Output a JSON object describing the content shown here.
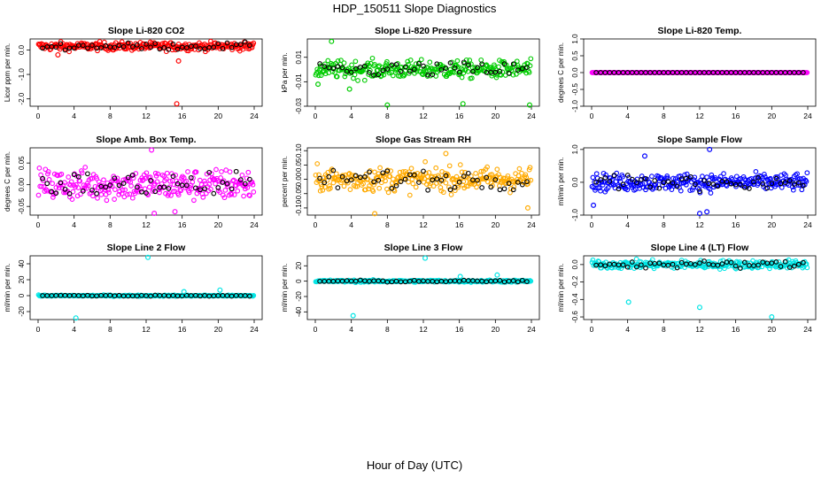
{
  "figure": {
    "title": "HDP_150511  Slope Diagnostics",
    "xlabel": "Hour of Day (UTC)"
  },
  "chart_data": [
    {
      "type": "scatter",
      "title": "Slope Li-820 CO2",
      "ylabel": "Licor ppm per min.",
      "color": "#ff0000",
      "xlim": [
        0,
        24
      ],
      "xticks": [
        "0",
        "4",
        "8",
        "12",
        "16",
        "20",
        "24"
      ],
      "ylim": [
        -2.3,
        0.45
      ],
      "yticks": [
        {
          "v": 0.0,
          "label": "0.0"
        },
        {
          "v": -1.0,
          "label": "-1.0"
        },
        {
          "v": -2.0,
          "label": "-2.0"
        }
      ],
      "band_center": 0.15,
      "band_spread": 0.14,
      "outliers": [
        {
          "x": 15.4,
          "y": -2.2
        },
        {
          "x": 15.6,
          "y": -0.45
        },
        {
          "x": 2.2,
          "y": -0.2
        }
      ]
    },
    {
      "type": "scatter",
      "title": "Slope Li-820 Pressure",
      "ylabel": "kPa per min.",
      "color": "#00cc00",
      "xlim": [
        0,
        24
      ],
      "xticks": [
        "0",
        "4",
        "8",
        "12",
        "16",
        "20",
        "24"
      ],
      "ylim": [
        -0.03,
        0.025
      ],
      "yticks": [
        {
          "v": 0.01,
          "label": "0.01"
        },
        {
          "v": -0.01,
          "label": "-0.01"
        },
        {
          "v": -0.03,
          "label": "-0.03"
        }
      ],
      "band_center": 0.0,
      "band_spread": 0.006,
      "outliers": [
        {
          "x": 1.8,
          "y": 0.023
        },
        {
          "x": 8.0,
          "y": -0.029
        },
        {
          "x": 16.4,
          "y": -0.028
        },
        {
          "x": 23.8,
          "y": -0.029
        },
        {
          "x": 3.8,
          "y": -0.016
        },
        {
          "x": 0.3,
          "y": -0.012
        }
      ]
    },
    {
      "type": "scatter",
      "title": "Slope Li-820 Temp.",
      "ylabel": "degrees C per min.",
      "color": "#ff00ff",
      "xlim": [
        0,
        24
      ],
      "xticks": [
        "0",
        "4",
        "8",
        "12",
        "16",
        "20",
        "24"
      ],
      "ylim": [
        -1.0,
        1.0
      ],
      "yticks": [
        {
          "v": 1.0,
          "label": "1.0"
        },
        {
          "v": 0.5,
          "label": "0.5"
        },
        {
          "v": 0.0,
          "label": "0.0"
        },
        {
          "v": -0.5,
          "label": "-0.5"
        },
        {
          "v": -1.0,
          "label": "-1.0"
        }
      ],
      "band_center": 0.0,
      "band_spread": 0.0,
      "outliers": []
    },
    {
      "type": "scatter",
      "title": "Slope Amb. Box Temp.",
      "ylabel": "degrees C per min.",
      "color": "#ff00ff",
      "xlim": [
        0,
        24
      ],
      "xticks": [
        "0",
        "4",
        "8",
        "12",
        "16",
        "20",
        "24"
      ],
      "ylim": [
        -0.07,
        0.085
      ],
      "yticks": [
        {
          "v": 0.05,
          "label": "0.05"
        },
        {
          "v": 0.0,
          "label": "0.00"
        },
        {
          "v": -0.05,
          "label": "-0.05"
        }
      ],
      "band_center": 0.0,
      "band_spread": 0.03,
      "outliers": [
        {
          "x": 12.6,
          "y": 0.08
        },
        {
          "x": 12.9,
          "y": -0.066
        },
        {
          "x": 15.2,
          "y": -0.062
        }
      ]
    },
    {
      "type": "scatter",
      "title": "Slope Gas Stream RH",
      "ylabel": "percent per min.",
      "color": "#ffaa00",
      "xlim": [
        0,
        24
      ],
      "xticks": [
        "0",
        "4",
        "8",
        "12",
        "16",
        "20",
        "24"
      ],
      "ylim": [
        -0.125,
        0.11
      ],
      "yticks": [
        {
          "v": 0.1,
          "label": "0.10"
        },
        {
          "v": 0.05,
          "label": "0.05"
        },
        {
          "v": 0.0,
          "label": "0.00"
        },
        {
          "v": -0.05,
          "label": "-0.05"
        },
        {
          "v": -0.1,
          "label": "-0.10"
        }
      ],
      "band_center": 0.0,
      "band_spread": 0.035,
      "outliers": [
        {
          "x": 6.6,
          "y": -0.12
        },
        {
          "x": 23.6,
          "y": -0.1
        },
        {
          "x": 14.5,
          "y": 0.09
        }
      ]
    },
    {
      "type": "scatter",
      "title": "Slope Sample Flow",
      "ylabel": "ml/min per min.",
      "color": "#0000ff",
      "xlim": [
        0,
        24
      ],
      "xticks": [
        "0",
        "4",
        "8",
        "12",
        "16",
        "20",
        "24"
      ],
      "ylim": [
        -1.0,
        1.05
      ],
      "yticks": [
        {
          "v": 1.0,
          "label": "1.0"
        },
        {
          "v": 0.0,
          "label": "0.0"
        },
        {
          "v": -1.0,
          "label": "-1.0"
        }
      ],
      "band_center": 0.0,
      "band_spread": 0.22,
      "outliers": [
        {
          "x": 13.1,
          "y": 1.0
        },
        {
          "x": 12.0,
          "y": -0.95
        },
        {
          "x": 12.8,
          "y": -0.9
        },
        {
          "x": 5.9,
          "y": 0.8
        },
        {
          "x": 0.2,
          "y": -0.7
        }
      ]
    },
    {
      "type": "scatter",
      "title": "Slope Line 2 Flow",
      "ylabel": "ml/min per min.",
      "color": "#00e5e5",
      "xlim": [
        0,
        24
      ],
      "xticks": [
        "0",
        "4",
        "8",
        "12",
        "16",
        "20",
        "24"
      ],
      "ylim": [
        -30,
        50
      ],
      "yticks": [
        {
          "v": 40,
          "label": "40"
        },
        {
          "v": 20,
          "label": "20"
        },
        {
          "v": 0,
          "label": "0"
        },
        {
          "v": -20,
          "label": "-20"
        }
      ],
      "band_center": 0.0,
      "band_spread": 0.6,
      "outliers": [
        {
          "x": 12.2,
          "y": 48
        },
        {
          "x": 4.2,
          "y": -28
        },
        {
          "x": 16.2,
          "y": 5
        },
        {
          "x": 20.2,
          "y": 7
        }
      ]
    },
    {
      "type": "scatter",
      "title": "Slope Line 3 Flow",
      "ylabel": "ml/min per min.",
      "color": "#00e5e5",
      "xlim": [
        0,
        24
      ],
      "xticks": [
        "0",
        "4",
        "8",
        "12",
        "16",
        "20",
        "24"
      ],
      "ylim": [
        -50,
        33
      ],
      "yticks": [
        {
          "v": 20,
          "label": "20"
        },
        {
          "v": 0,
          "label": "0"
        },
        {
          "v": -20,
          "label": "-20"
        },
        {
          "v": -40,
          "label": "-40"
        }
      ],
      "band_center": 0.0,
      "band_spread": 1.2,
      "outliers": [
        {
          "x": 12.2,
          "y": 30
        },
        {
          "x": 4.2,
          "y": -45
        },
        {
          "x": 20.2,
          "y": 8
        },
        {
          "x": 16.1,
          "y": 6
        }
      ]
    },
    {
      "type": "scatter",
      "title": "Slope Line 4 (LT) Flow",
      "ylabel": "ml/min per min.",
      "color": "#00e5e5",
      "xlim": [
        0,
        24
      ],
      "xticks": [
        "0",
        "4",
        "8",
        "12",
        "16",
        "20",
        "24"
      ],
      "ylim": [
        -0.63,
        0.1
      ],
      "yticks": [
        {
          "v": 0.0,
          "label": "0.0"
        },
        {
          "v": -0.2,
          "label": "-0.2"
        },
        {
          "v": -0.4,
          "label": "-0.4"
        },
        {
          "v": -0.6,
          "label": "-0.6"
        }
      ],
      "band_center": 0.0,
      "band_spread": 0.04,
      "outliers": [
        {
          "x": 4.1,
          "y": -0.43
        },
        {
          "x": 12.0,
          "y": -0.49
        },
        {
          "x": 20.0,
          "y": -0.6
        }
      ]
    }
  ]
}
